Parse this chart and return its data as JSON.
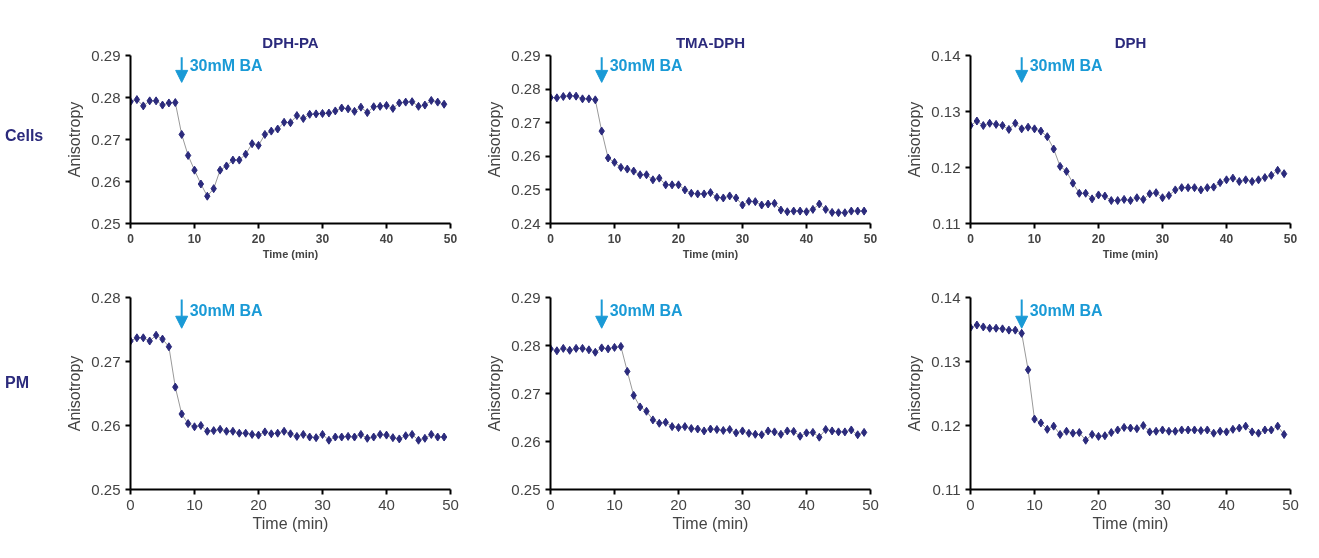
{
  "chart_data": [
    {
      "type": "line",
      "title": "DPH-PA",
      "xlabel": "Time (min)",
      "ylabel": "Anisotropy",
      "marker": "diamond",
      "grid": false,
      "x": [
        0,
        1,
        2,
        3,
        4,
        5,
        6,
        7,
        8,
        9,
        10,
        11,
        12,
        13,
        14,
        15,
        16,
        17,
        18,
        19,
        20,
        21,
        22,
        23,
        24,
        25,
        26,
        27,
        28,
        29,
        30,
        31,
        32,
        33,
        34,
        35,
        36,
        37,
        38,
        39,
        40,
        41,
        42,
        43,
        44,
        45,
        46,
        47,
        48,
        49
      ],
      "series": [
        {
          "color": "#2b2a7c",
          "values": [
            0.279,
            0.2795,
            0.278,
            0.2792,
            0.2792,
            0.2782,
            0.2787,
            0.2788,
            0.2712,
            0.2662,
            0.2627,
            0.2594,
            0.2565,
            0.2583,
            0.2627,
            0.2637,
            0.2651,
            0.2651,
            0.2665,
            0.269,
            0.2686,
            0.2712,
            0.272,
            0.2725,
            0.2741,
            0.274,
            0.2757,
            0.275,
            0.276,
            0.2761,
            0.2762,
            0.2763,
            0.2768,
            0.2775,
            0.2773,
            0.2767,
            0.2777,
            0.2764,
            0.2778,
            0.2779,
            0.2781,
            0.2774,
            0.2787,
            0.2789,
            0.279,
            0.2779,
            0.2782,
            0.2793,
            0.2789,
            0.2784
          ]
        }
      ],
      "xlim": [
        0,
        50
      ],
      "xticks": [
        0,
        10,
        20,
        30,
        40,
        50
      ],
      "ylim": [
        0.25,
        0.29
      ],
      "yticks": [
        0.25,
        0.26,
        0.27,
        0.28,
        0.29
      ],
      "annotations": [
        "Cells",
        "30mM BA"
      ]
    },
    {
      "type": "line",
      "title": "TMA-DPH",
      "xlabel": "Time (min)",
      "ylabel": "Anisotropy",
      "marker": "diamond",
      "grid": false,
      "x": [
        0,
        1,
        2,
        3,
        4,
        5,
        6,
        7,
        8,
        9,
        10,
        11,
        12,
        13,
        14,
        15,
        16,
        17,
        18,
        19,
        20,
        21,
        22,
        23,
        24,
        25,
        26,
        27,
        28,
        29,
        30,
        31,
        32,
        33,
        34,
        35,
        36,
        37,
        38,
        39,
        40,
        41,
        42,
        43,
        44,
        45,
        46,
        47,
        48,
        49
      ],
      "series": [
        {
          "color": "#2b2a7c",
          "values": [
            0.2775,
            0.2774,
            0.2778,
            0.278,
            0.2779,
            0.2771,
            0.2771,
            0.2768,
            0.2675,
            0.2595,
            0.2582,
            0.2567,
            0.2562,
            0.2556,
            0.2545,
            0.2545,
            0.253,
            0.2535,
            0.2515,
            0.2515,
            0.2515,
            0.25,
            0.249,
            0.2488,
            0.2488,
            0.2492,
            0.2478,
            0.2476,
            0.2482,
            0.2476,
            0.2455,
            0.2466,
            0.2465,
            0.2455,
            0.2458,
            0.246,
            0.244,
            0.2435,
            0.2437,
            0.2437,
            0.2435,
            0.2442,
            0.2458,
            0.2442,
            0.2433,
            0.2432,
            0.2432,
            0.2437,
            0.2437,
            0.2437
          ]
        }
      ],
      "xlim": [
        0,
        50
      ],
      "xticks": [
        0,
        10,
        20,
        30,
        40,
        50
      ],
      "ylim": [
        0.24,
        0.29
      ],
      "yticks": [
        0.24,
        0.25,
        0.26,
        0.27,
        0.28,
        0.29
      ],
      "annotations": [
        "30mM BA"
      ]
    },
    {
      "type": "line",
      "title": "DPH",
      "xlabel": "Time (min)",
      "ylabel": "Anisotropy",
      "marker": "diamond",
      "grid": false,
      "x": [
        0,
        1,
        2,
        3,
        4,
        5,
        6,
        7,
        8,
        9,
        10,
        11,
        12,
        13,
        14,
        15,
        16,
        17,
        18,
        19,
        20,
        21,
        22,
        23,
        24,
        25,
        26,
        27,
        28,
        29,
        30,
        31,
        32,
        33,
        34,
        35,
        36,
        37,
        38,
        39,
        40,
        41,
        42,
        43,
        44,
        45,
        46,
        47,
        48,
        49
      ],
      "series": [
        {
          "color": "#2b2a7c",
          "values": [
            0.1275,
            0.1283,
            0.1275,
            0.1279,
            0.1277,
            0.1275,
            0.1268,
            0.1279,
            0.1269,
            0.1272,
            0.1269,
            0.1265,
            0.1255,
            0.1233,
            0.1202,
            0.1193,
            0.1172,
            0.1154,
            0.1154,
            0.1144,
            0.1151,
            0.1149,
            0.1141,
            0.1141,
            0.1143,
            0.1141,
            0.1146,
            0.1143,
            0.1153,
            0.1155,
            0.1146,
            0.115,
            0.116,
            0.1164,
            0.1164,
            0.1164,
            0.116,
            0.1164,
            0.1165,
            0.1173,
            0.1178,
            0.1181,
            0.1175,
            0.1178,
            0.1175,
            0.1178,
            0.1182,
            0.1186,
            0.1195,
            0.1189
          ]
        }
      ],
      "xlim": [
        0,
        50
      ],
      "xticks": [
        0,
        10,
        20,
        30,
        40,
        50
      ],
      "ylim": [
        0.11,
        0.14
      ],
      "yticks": [
        0.11,
        0.12,
        0.13,
        0.14
      ],
      "annotations": [
        "30mM BA"
      ]
    },
    {
      "type": "line",
      "xlabel": "Time (min)",
      "ylabel": "Anisotropy",
      "marker": "diamond",
      "grid": false,
      "x": [
        0,
        1,
        2,
        3,
        4,
        5,
        6,
        7,
        8,
        9,
        10,
        11,
        12,
        13,
        14,
        15,
        16,
        17,
        18,
        19,
        20,
        21,
        22,
        23,
        24,
        25,
        26,
        27,
        28,
        29,
        30,
        31,
        32,
        33,
        34,
        35,
        36,
        37,
        38,
        39,
        40,
        41,
        42,
        43,
        44,
        45,
        46,
        47,
        48,
        49
      ],
      "series": [
        {
          "color": "#2b2a7c",
          "values": [
            0.2732,
            0.2737,
            0.2737,
            0.2732,
            0.2741,
            0.2735,
            0.2723,
            0.266,
            0.2618,
            0.2603,
            0.2598,
            0.26,
            0.2591,
            0.2592,
            0.2594,
            0.2591,
            0.2591,
            0.2588,
            0.2588,
            0.2586,
            0.2585,
            0.259,
            0.2587,
            0.2588,
            0.2591,
            0.2587,
            0.2583,
            0.2586,
            0.2582,
            0.2581,
            0.2586,
            0.2577,
            0.2582,
            0.2582,
            0.2583,
            0.2582,
            0.2586,
            0.258,
            0.2582,
            0.2586,
            0.2585,
            0.2581,
            0.2579,
            0.2584,
            0.2586,
            0.2577,
            0.258,
            0.2586,
            0.2582,
            0.2582
          ]
        }
      ],
      "xlim": [
        0,
        50
      ],
      "xticks": [
        0,
        10,
        20,
        30,
        40,
        50
      ],
      "ylim": [
        0.25,
        0.28
      ],
      "yticks": [
        0.25,
        0.26,
        0.27,
        0.28
      ],
      "annotations": [
        "PM",
        "30mM BA"
      ]
    },
    {
      "type": "line",
      "xlabel": "Time (min)",
      "ylabel": "Anisotropy",
      "marker": "diamond",
      "grid": false,
      "x": [
        0,
        1,
        2,
        3,
        4,
        5,
        6,
        7,
        8,
        9,
        10,
        11,
        12,
        13,
        14,
        15,
        16,
        17,
        18,
        19,
        20,
        21,
        22,
        23,
        24,
        25,
        26,
        27,
        28,
        29,
        30,
        31,
        32,
        33,
        34,
        35,
        36,
        37,
        38,
        39,
        40,
        41,
        42,
        43,
        44,
        45,
        46,
        47,
        48,
        49
      ],
      "series": [
        {
          "color": "#2b2a7c",
          "values": [
            0.2793,
            0.2789,
            0.2794,
            0.279,
            0.2794,
            0.2794,
            0.2791,
            0.2786,
            0.2795,
            0.2793,
            0.2796,
            0.2798,
            0.2746,
            0.2696,
            0.2672,
            0.2663,
            0.2645,
            0.2638,
            0.264,
            0.2631,
            0.2629,
            0.2631,
            0.2627,
            0.2626,
            0.2622,
            0.2626,
            0.2625,
            0.2623,
            0.2625,
            0.2618,
            0.2622,
            0.2617,
            0.2615,
            0.2614,
            0.2622,
            0.262,
            0.2615,
            0.2622,
            0.2621,
            0.2611,
            0.2618,
            0.2619,
            0.2609,
            0.2625,
            0.2622,
            0.262,
            0.262,
            0.2624,
            0.2614,
            0.2619
          ]
        }
      ],
      "xlim": [
        0,
        50
      ],
      "xticks": [
        0,
        10,
        20,
        30,
        40,
        50
      ],
      "ylim": [
        0.25,
        0.29
      ],
      "yticks": [
        0.25,
        0.26,
        0.27,
        0.28,
        0.29
      ],
      "annotations": [
        "30mM BA"
      ]
    },
    {
      "type": "line",
      "xlabel": "Time (min)",
      "ylabel": "Anisotropy",
      "marker": "diamond",
      "grid": false,
      "x": [
        0,
        1,
        2,
        3,
        4,
        5,
        6,
        7,
        8,
        9,
        10,
        11,
        12,
        13,
        14,
        15,
        16,
        17,
        18,
        19,
        20,
        21,
        22,
        23,
        24,
        25,
        26,
        27,
        28,
        29,
        30,
        31,
        32,
        33,
        34,
        35,
        36,
        37,
        38,
        39,
        40,
        41,
        42,
        43,
        44,
        45,
        46,
        47,
        48,
        49
      ],
      "series": [
        {
          "color": "#2b2a7c",
          "values": [
            0.1353,
            0.1357,
            0.1354,
            0.1352,
            0.1352,
            0.1351,
            0.1349,
            0.1349,
            0.1344,
            0.1287,
            0.121,
            0.1204,
            0.1194,
            0.1199,
            0.1186,
            0.1191,
            0.1188,
            0.1189,
            0.1177,
            0.1186,
            0.1183,
            0.1184,
            0.1189,
            0.1193,
            0.1197,
            0.1196,
            0.1195,
            0.12,
            0.119,
            0.1191,
            0.1193,
            0.1191,
            0.1191,
            0.1193,
            0.1193,
            0.1193,
            0.1192,
            0.1193,
            0.1188,
            0.1191,
            0.119,
            0.1194,
            0.1196,
            0.1199,
            0.119,
            0.1188,
            0.1193,
            0.1193,
            0.1199,
            0.1186
          ]
        }
      ],
      "xlim": [
        0,
        50
      ],
      "xticks": [
        0,
        10,
        20,
        30,
        40,
        50
      ],
      "ylim": [
        0.11,
        0.14
      ],
      "yticks": [
        0.11,
        0.12,
        0.13,
        0.14
      ],
      "annotations": [
        "30mM BA"
      ]
    }
  ]
}
